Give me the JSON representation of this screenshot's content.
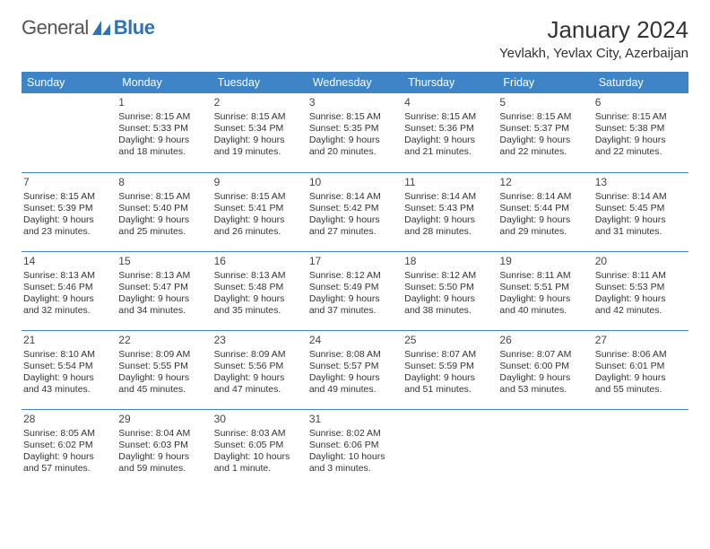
{
  "logo": {
    "text1": "General",
    "text2": "Blue",
    "brand_color": "#2f72b6"
  },
  "title": {
    "month": "January 2024",
    "location": "Yevlakh, Yevlax City, Azerbaijan"
  },
  "theme": {
    "header_bg": "#3d85c6",
    "header_fg": "#ffffff",
    "rule_color": "#3d85c6",
    "page_bg": "#ffffff",
    "text_color": "#333333"
  },
  "weekdays": [
    "Sunday",
    "Monday",
    "Tuesday",
    "Wednesday",
    "Thursday",
    "Friday",
    "Saturday"
  ],
  "type": "table",
  "columns": 7,
  "weeks": [
    [
      {
        "day": "",
        "sunrise": "",
        "sunset": "",
        "daylight1": "",
        "daylight2": ""
      },
      {
        "day": "1",
        "sunrise": "Sunrise: 8:15 AM",
        "sunset": "Sunset: 5:33 PM",
        "daylight1": "Daylight: 9 hours",
        "daylight2": "and 18 minutes."
      },
      {
        "day": "2",
        "sunrise": "Sunrise: 8:15 AM",
        "sunset": "Sunset: 5:34 PM",
        "daylight1": "Daylight: 9 hours",
        "daylight2": "and 19 minutes."
      },
      {
        "day": "3",
        "sunrise": "Sunrise: 8:15 AM",
        "sunset": "Sunset: 5:35 PM",
        "daylight1": "Daylight: 9 hours",
        "daylight2": "and 20 minutes."
      },
      {
        "day": "4",
        "sunrise": "Sunrise: 8:15 AM",
        "sunset": "Sunset: 5:36 PM",
        "daylight1": "Daylight: 9 hours",
        "daylight2": "and 21 minutes."
      },
      {
        "day": "5",
        "sunrise": "Sunrise: 8:15 AM",
        "sunset": "Sunset: 5:37 PM",
        "daylight1": "Daylight: 9 hours",
        "daylight2": "and 22 minutes."
      },
      {
        "day": "6",
        "sunrise": "Sunrise: 8:15 AM",
        "sunset": "Sunset: 5:38 PM",
        "daylight1": "Daylight: 9 hours",
        "daylight2": "and 22 minutes."
      }
    ],
    [
      {
        "day": "7",
        "sunrise": "Sunrise: 8:15 AM",
        "sunset": "Sunset: 5:39 PM",
        "daylight1": "Daylight: 9 hours",
        "daylight2": "and 23 minutes."
      },
      {
        "day": "8",
        "sunrise": "Sunrise: 8:15 AM",
        "sunset": "Sunset: 5:40 PM",
        "daylight1": "Daylight: 9 hours",
        "daylight2": "and 25 minutes."
      },
      {
        "day": "9",
        "sunrise": "Sunrise: 8:15 AM",
        "sunset": "Sunset: 5:41 PM",
        "daylight1": "Daylight: 9 hours",
        "daylight2": "and 26 minutes."
      },
      {
        "day": "10",
        "sunrise": "Sunrise: 8:14 AM",
        "sunset": "Sunset: 5:42 PM",
        "daylight1": "Daylight: 9 hours",
        "daylight2": "and 27 minutes."
      },
      {
        "day": "11",
        "sunrise": "Sunrise: 8:14 AM",
        "sunset": "Sunset: 5:43 PM",
        "daylight1": "Daylight: 9 hours",
        "daylight2": "and 28 minutes."
      },
      {
        "day": "12",
        "sunrise": "Sunrise: 8:14 AM",
        "sunset": "Sunset: 5:44 PM",
        "daylight1": "Daylight: 9 hours",
        "daylight2": "and 29 minutes."
      },
      {
        "day": "13",
        "sunrise": "Sunrise: 8:14 AM",
        "sunset": "Sunset: 5:45 PM",
        "daylight1": "Daylight: 9 hours",
        "daylight2": "and 31 minutes."
      }
    ],
    [
      {
        "day": "14",
        "sunrise": "Sunrise: 8:13 AM",
        "sunset": "Sunset: 5:46 PM",
        "daylight1": "Daylight: 9 hours",
        "daylight2": "and 32 minutes."
      },
      {
        "day": "15",
        "sunrise": "Sunrise: 8:13 AM",
        "sunset": "Sunset: 5:47 PM",
        "daylight1": "Daylight: 9 hours",
        "daylight2": "and 34 minutes."
      },
      {
        "day": "16",
        "sunrise": "Sunrise: 8:13 AM",
        "sunset": "Sunset: 5:48 PM",
        "daylight1": "Daylight: 9 hours",
        "daylight2": "and 35 minutes."
      },
      {
        "day": "17",
        "sunrise": "Sunrise: 8:12 AM",
        "sunset": "Sunset: 5:49 PM",
        "daylight1": "Daylight: 9 hours",
        "daylight2": "and 37 minutes."
      },
      {
        "day": "18",
        "sunrise": "Sunrise: 8:12 AM",
        "sunset": "Sunset: 5:50 PM",
        "daylight1": "Daylight: 9 hours",
        "daylight2": "and 38 minutes."
      },
      {
        "day": "19",
        "sunrise": "Sunrise: 8:11 AM",
        "sunset": "Sunset: 5:51 PM",
        "daylight1": "Daylight: 9 hours",
        "daylight2": "and 40 minutes."
      },
      {
        "day": "20",
        "sunrise": "Sunrise: 8:11 AM",
        "sunset": "Sunset: 5:53 PM",
        "daylight1": "Daylight: 9 hours",
        "daylight2": "and 42 minutes."
      }
    ],
    [
      {
        "day": "21",
        "sunrise": "Sunrise: 8:10 AM",
        "sunset": "Sunset: 5:54 PM",
        "daylight1": "Daylight: 9 hours",
        "daylight2": "and 43 minutes."
      },
      {
        "day": "22",
        "sunrise": "Sunrise: 8:09 AM",
        "sunset": "Sunset: 5:55 PM",
        "daylight1": "Daylight: 9 hours",
        "daylight2": "and 45 minutes."
      },
      {
        "day": "23",
        "sunrise": "Sunrise: 8:09 AM",
        "sunset": "Sunset: 5:56 PM",
        "daylight1": "Daylight: 9 hours",
        "daylight2": "and 47 minutes."
      },
      {
        "day": "24",
        "sunrise": "Sunrise: 8:08 AM",
        "sunset": "Sunset: 5:57 PM",
        "daylight1": "Daylight: 9 hours",
        "daylight2": "and 49 minutes."
      },
      {
        "day": "25",
        "sunrise": "Sunrise: 8:07 AM",
        "sunset": "Sunset: 5:59 PM",
        "daylight1": "Daylight: 9 hours",
        "daylight2": "and 51 minutes."
      },
      {
        "day": "26",
        "sunrise": "Sunrise: 8:07 AM",
        "sunset": "Sunset: 6:00 PM",
        "daylight1": "Daylight: 9 hours",
        "daylight2": "and 53 minutes."
      },
      {
        "day": "27",
        "sunrise": "Sunrise: 8:06 AM",
        "sunset": "Sunset: 6:01 PM",
        "daylight1": "Daylight: 9 hours",
        "daylight2": "and 55 minutes."
      }
    ],
    [
      {
        "day": "28",
        "sunrise": "Sunrise: 8:05 AM",
        "sunset": "Sunset: 6:02 PM",
        "daylight1": "Daylight: 9 hours",
        "daylight2": "and 57 minutes."
      },
      {
        "day": "29",
        "sunrise": "Sunrise: 8:04 AM",
        "sunset": "Sunset: 6:03 PM",
        "daylight1": "Daylight: 9 hours",
        "daylight2": "and 59 minutes."
      },
      {
        "day": "30",
        "sunrise": "Sunrise: 8:03 AM",
        "sunset": "Sunset: 6:05 PM",
        "daylight1": "Daylight: 10 hours",
        "daylight2": "and 1 minute."
      },
      {
        "day": "31",
        "sunrise": "Sunrise: 8:02 AM",
        "sunset": "Sunset: 6:06 PM",
        "daylight1": "Daylight: 10 hours",
        "daylight2": "and 3 minutes."
      },
      {
        "day": "",
        "sunrise": "",
        "sunset": "",
        "daylight1": "",
        "daylight2": ""
      },
      {
        "day": "",
        "sunrise": "",
        "sunset": "",
        "daylight1": "",
        "daylight2": ""
      },
      {
        "day": "",
        "sunrise": "",
        "sunset": "",
        "daylight1": "",
        "daylight2": ""
      }
    ]
  ]
}
